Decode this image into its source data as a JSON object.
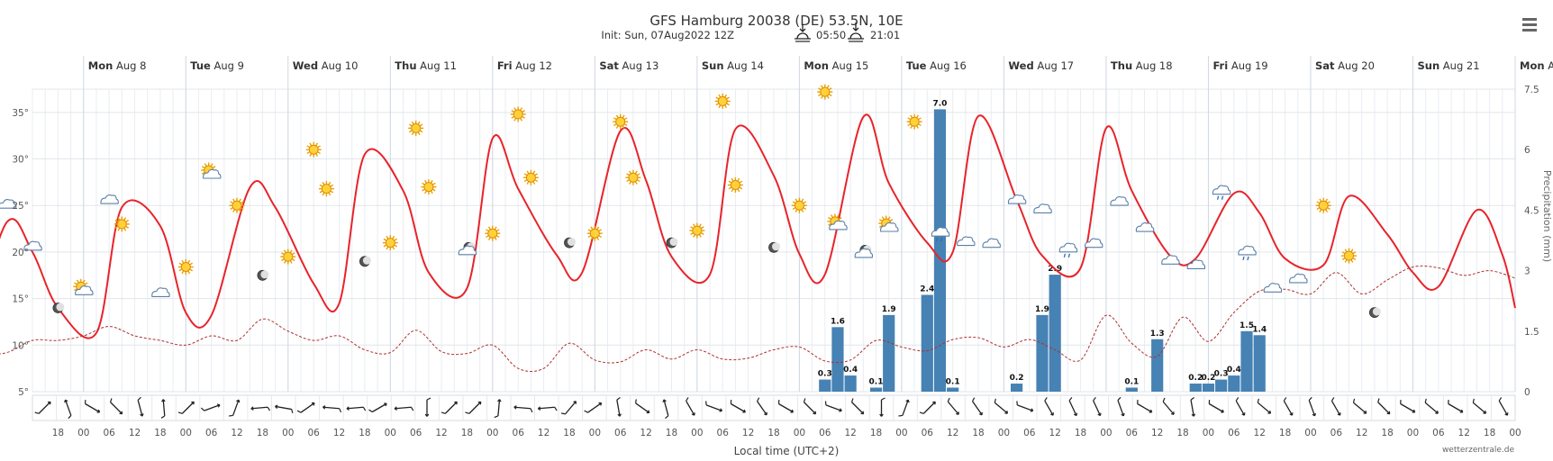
{
  "header": {
    "title": "GFS Hamburg 20038 (DE) 53.5N, 10E",
    "init": "Init: Sun, 07Aug2022 12Z",
    "sunrise": "05:50",
    "sunset": "21:01",
    "credit": "wetterzentrale.de",
    "xaxis_title": "Local time (UTC+2)",
    "y2_title": "Precipitation (mm)"
  },
  "chart_data": {
    "type": "line",
    "days": [
      {
        "wd": "Mon",
        "d": "Aug 8"
      },
      {
        "wd": "Tue",
        "d": "Aug 9"
      },
      {
        "wd": "Wed",
        "d": "Aug 10"
      },
      {
        "wd": "Thu",
        "d": "Aug 11"
      },
      {
        "wd": "Fri",
        "d": "Aug 12"
      },
      {
        "wd": "Sat",
        "d": "Aug 13"
      },
      {
        "wd": "Sun",
        "d": "Aug 14"
      },
      {
        "wd": "Mon",
        "d": "Aug 15"
      },
      {
        "wd": "Tue",
        "d": "Aug 16"
      },
      {
        "wd": "Wed",
        "d": "Aug 17"
      },
      {
        "wd": "Thu",
        "d": "Aug 18"
      },
      {
        "wd": "Fri",
        "d": "Aug 19"
      },
      {
        "wd": "Sat",
        "d": "Aug 20"
      },
      {
        "wd": "Sun",
        "d": "Aug 21"
      },
      {
        "wd": "Mon",
        "d": "Aug 22"
      }
    ],
    "x_start_h": 36,
    "x_end_h": 384,
    "y_ticks": [
      "5°",
      "10°",
      "15°",
      "20°",
      "25°",
      "30°",
      "35°"
    ],
    "y_range": [
      5,
      37.5
    ],
    "y2_ticks": [
      "0",
      "1.5",
      "3",
      "4.5",
      "6",
      "7.5"
    ],
    "y2_range": [
      0,
      7.5
    ],
    "x_ticks": [
      "18",
      "00",
      "06",
      "12",
      "18",
      "00",
      "06",
      "12",
      "18",
      "00",
      "06",
      "12",
      "18",
      "00",
      "06",
      "12",
      "18",
      "00",
      "06",
      "12",
      "18",
      "00",
      "06",
      "12",
      "18",
      "00",
      "06",
      "12",
      "18",
      "00",
      "06",
      "12",
      "18",
      "00",
      "06",
      "12",
      "18",
      "00",
      "06",
      "12",
      "18",
      "00",
      "06",
      "12",
      "18",
      "00",
      "06",
      "12",
      "18",
      "00",
      "06",
      "12",
      "18",
      "00",
      "06",
      "12",
      "18",
      "00",
      "06",
      "12",
      "18",
      "00"
    ],
    "series": [
      {
        "name": "Temperature",
        "color": "#e8232a",
        "h": [
          0,
          6,
          15,
          21,
          30,
          36,
          42,
          51,
          57,
          66,
          72,
          78,
          87,
          93,
          102,
          108,
          114,
          123,
          129,
          138,
          144,
          150,
          159,
          165,
          174,
          180,
          186,
          195,
          201,
          210,
          216,
          222,
          231,
          237,
          246,
          252,
          258,
          267,
          273,
          282,
          288,
          294,
          303,
          309,
          318,
          324,
          330,
          339,
          345,
          354,
          360,
          366,
          375,
          381,
          384
        ],
        "v": [
          20,
          21,
          13,
          11.5,
          23.2,
          20,
          14,
          11.3,
          24.8,
          22.8,
          13.5,
          13.2,
          26.9,
          24.8,
          16.6,
          14.5,
          30.5,
          26.6,
          17.8,
          16.1,
          32.2,
          26.8,
          19.7,
          17.8,
          33,
          27.7,
          19.5,
          17.6,
          33.2,
          28.2,
          19.8,
          17.6,
          34.5,
          27.4,
          21,
          20,
          34.6,
          25.6,
          19.6,
          18.3,
          33.3,
          26.6,
          19.6,
          19.3,
          26.3,
          24.2,
          19.3,
          18.6,
          26,
          21.9,
          17.8,
          16.3,
          24.5,
          19.7,
          14
        ]
      },
      {
        "name": "Dewpoint",
        "color": "#b03030",
        "h": [
          0,
          6,
          12,
          18,
          24,
          30,
          36,
          42,
          48,
          54,
          60,
          66,
          72,
          78,
          84,
          90,
          96,
          102,
          108,
          114,
          120,
          126,
          132,
          138,
          144,
          150,
          156,
          162,
          168,
          174,
          180,
          186,
          192,
          198,
          204,
          210,
          216,
          222,
          228,
          234,
          240,
          246,
          252,
          258,
          264,
          270,
          276,
          282,
          288,
          294,
          300,
          306,
          312,
          318,
          324,
          330,
          336,
          342,
          348,
          354,
          360,
          366,
          372,
          378,
          384
        ],
        "v": [
          8,
          8.3,
          10,
          9,
          9,
          9.2,
          10.5,
          10.5,
          11,
          12,
          11,
          10.5,
          10,
          11,
          10.5,
          12.8,
          11.5,
          10.5,
          11,
          9.5,
          9.2,
          11.6,
          9.3,
          9.1,
          10,
          7.5,
          7.5,
          10.2,
          8.4,
          8.2,
          9.5,
          8.5,
          9.5,
          8.5,
          8.6,
          9.5,
          9.8,
          8.3,
          8.4,
          10.5,
          9.8,
          9.4,
          10.6,
          10.8,
          9.8,
          10.6,
          9.5,
          8.4,
          13.2,
          10.2,
          8.8,
          13,
          10.4,
          13.5,
          15.8,
          16,
          15.5,
          17.8,
          15.5,
          17,
          18.4,
          18.3,
          17.5,
          18,
          17.2
        ]
      }
    ],
    "precip": [
      {
        "h": 222,
        "v": 0.3
      },
      {
        "h": 225,
        "v": 1.6
      },
      {
        "h": 228,
        "v": 0.4
      },
      {
        "h": 234,
        "v": 0.1
      },
      {
        "h": 237,
        "v": 1.9
      },
      {
        "h": 246,
        "v": 2.4
      },
      {
        "h": 249,
        "v": 7.0
      },
      {
        "h": 252,
        "v": 0.1
      },
      {
        "h": 267,
        "v": 0.2
      },
      {
        "h": 273,
        "v": 1.9
      },
      {
        "h": 276,
        "v": 2.9
      },
      {
        "h": 294,
        "v": 0.1
      },
      {
        "h": 300,
        "v": 1.3
      },
      {
        "h": 309,
        "v": 0.2
      },
      {
        "h": 312,
        "v": 0.2
      },
      {
        "h": 315,
        "v": 0.3
      },
      {
        "h": 318,
        "v": 0.4
      },
      {
        "h": 321,
        "v": 1.5
      },
      {
        "h": 324,
        "v": 1.4
      }
    ],
    "symbols": [
      {
        "h": 6,
        "v": 21,
        "t": "sun"
      },
      {
        "h": 15,
        "v": 14,
        "t": "moon"
      },
      {
        "h": 24,
        "v": 16.5,
        "t": "partly"
      },
      {
        "h": 30,
        "v": 25,
        "t": "cloud"
      },
      {
        "h": 36,
        "v": 20.5,
        "t": "cloud"
      },
      {
        "h": 42,
        "v": 14,
        "t": "moon"
      },
      {
        "h": 48,
        "v": 16,
        "t": "partly"
      },
      {
        "h": 54,
        "v": 25.5,
        "t": "cloud"
      },
      {
        "h": 57,
        "v": 23,
        "t": "sun"
      },
      {
        "h": 66,
        "v": 15.5,
        "t": "cloud"
      },
      {
        "h": 72,
        "v": 18.4,
        "t": "sun"
      },
      {
        "h": 78,
        "v": 28.5,
        "t": "partly"
      },
      {
        "h": 84,
        "v": 25,
        "t": "sun"
      },
      {
        "h": 90,
        "v": 17.5,
        "t": "moon"
      },
      {
        "h": 96,
        "v": 19.5,
        "t": "sun"
      },
      {
        "h": 102,
        "v": 31,
        "t": "sun"
      },
      {
        "h": 105,
        "v": 26.8,
        "t": "sun"
      },
      {
        "h": 114,
        "v": 19,
        "t": "moon"
      },
      {
        "h": 120,
        "v": 21,
        "t": "sun"
      },
      {
        "h": 126,
        "v": 33.3,
        "t": "sun"
      },
      {
        "h": 129,
        "v": 27,
        "t": "sun"
      },
      {
        "h": 138,
        "v": 20.3,
        "t": "moonc"
      },
      {
        "h": 144,
        "v": 22,
        "t": "sun"
      },
      {
        "h": 150,
        "v": 34.8,
        "t": "sun"
      },
      {
        "h": 153,
        "v": 28,
        "t": "sun"
      },
      {
        "h": 162,
        "v": 21,
        "t": "moon"
      },
      {
        "h": 168,
        "v": 22,
        "t": "sun"
      },
      {
        "h": 174,
        "v": 34,
        "t": "sun"
      },
      {
        "h": 177,
        "v": 28,
        "t": "sun"
      },
      {
        "h": 186,
        "v": 21,
        "t": "moon"
      },
      {
        "h": 192,
        "v": 22.3,
        "t": "sun"
      },
      {
        "h": 198,
        "v": 36.2,
        "t": "sun"
      },
      {
        "h": 201,
        "v": 27.2,
        "t": "sun"
      },
      {
        "h": 210,
        "v": 20.5,
        "t": "moon"
      },
      {
        "h": 216,
        "v": 25,
        "t": "sun"
      },
      {
        "h": 222,
        "v": 37.2,
        "t": "sun"
      },
      {
        "h": 225,
        "v": 23,
        "t": "partly"
      },
      {
        "h": 231,
        "v": 20,
        "t": "moonc"
      },
      {
        "h": 237,
        "v": 22.8,
        "t": "partly"
      },
      {
        "h": 243,
        "v": 34,
        "t": "sun"
      },
      {
        "h": 249,
        "v": 22,
        "t": "rain"
      },
      {
        "h": 255,
        "v": 21,
        "t": "cloud"
      },
      {
        "h": 261,
        "v": 20.8,
        "t": "cloud"
      },
      {
        "h": 267,
        "v": 25.5,
        "t": "cloud"
      },
      {
        "h": 273,
        "v": 24.5,
        "t": "cloud"
      },
      {
        "h": 279,
        "v": 20.3,
        "t": "rain"
      },
      {
        "h": 285,
        "v": 20.8,
        "t": "cloud"
      },
      {
        "h": 291,
        "v": 25.3,
        "t": "cloud"
      },
      {
        "h": 297,
        "v": 22.5,
        "t": "cloud"
      },
      {
        "h": 303,
        "v": 19,
        "t": "cloud"
      },
      {
        "h": 309,
        "v": 18.5,
        "t": "cloud"
      },
      {
        "h": 315,
        "v": 26.5,
        "t": "rain"
      },
      {
        "h": 321,
        "v": 20,
        "t": "rain"
      },
      {
        "h": 327,
        "v": 16,
        "t": "cloud"
      },
      {
        "h": 333,
        "v": 17,
        "t": "cloud"
      },
      {
        "h": 339,
        "v": 25,
        "t": "sun"
      },
      {
        "h": 345,
        "v": 19.6,
        "t": "sun"
      },
      {
        "h": 351,
        "v": 13.5,
        "t": "moon"
      }
    ],
    "wind_dirs": [
      225,
      160,
      300,
      315,
      345,
      175,
      225,
      250,
      200,
      85,
      100,
      235,
      95,
      85,
      240,
      85,
      0,
      225,
      225,
      185,
      95,
      85,
      220,
      235,
      350,
      305,
      165,
      330,
      290,
      300,
      325,
      300,
      315,
      290,
      315,
      0,
      200,
      225,
      320,
      325,
      310,
      290,
      330,
      335,
      335,
      340,
      300,
      320,
      350,
      300,
      330,
      310,
      330,
      340,
      330,
      310,
      315,
      300,
      310,
      300,
      310,
      330
    ]
  }
}
